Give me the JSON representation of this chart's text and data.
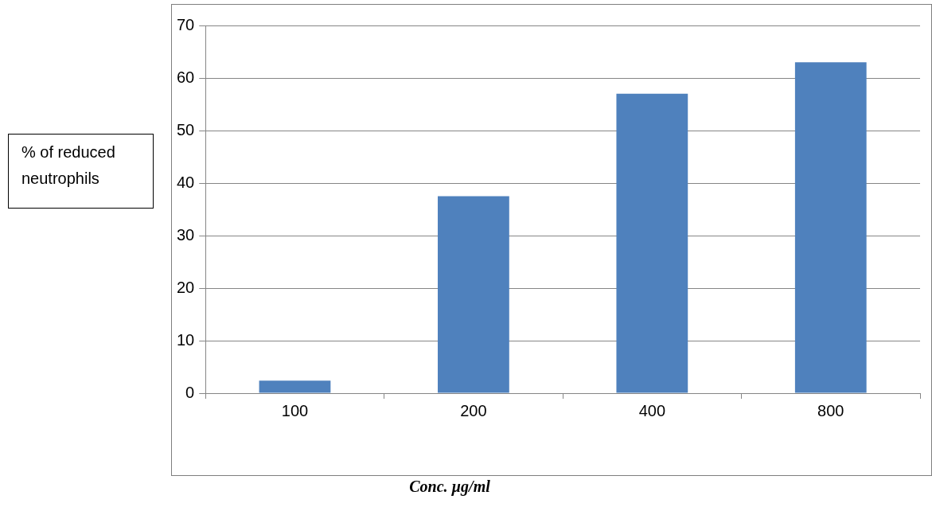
{
  "chart_data": {
    "type": "bar",
    "xlabel": "Conc. µg/ml",
    "ylabel": "% of reduced neutrophils",
    "categories": [
      "100",
      "200",
      "400",
      "800"
    ],
    "values": [
      2.4,
      37.5,
      57,
      63
    ],
    "color": "#4f81bd",
    "ylim": [
      0,
      70
    ],
    "yticks": [
      0,
      10,
      20,
      30,
      40,
      50,
      60,
      70
    ],
    "grid": "y",
    "legend": false
  }
}
